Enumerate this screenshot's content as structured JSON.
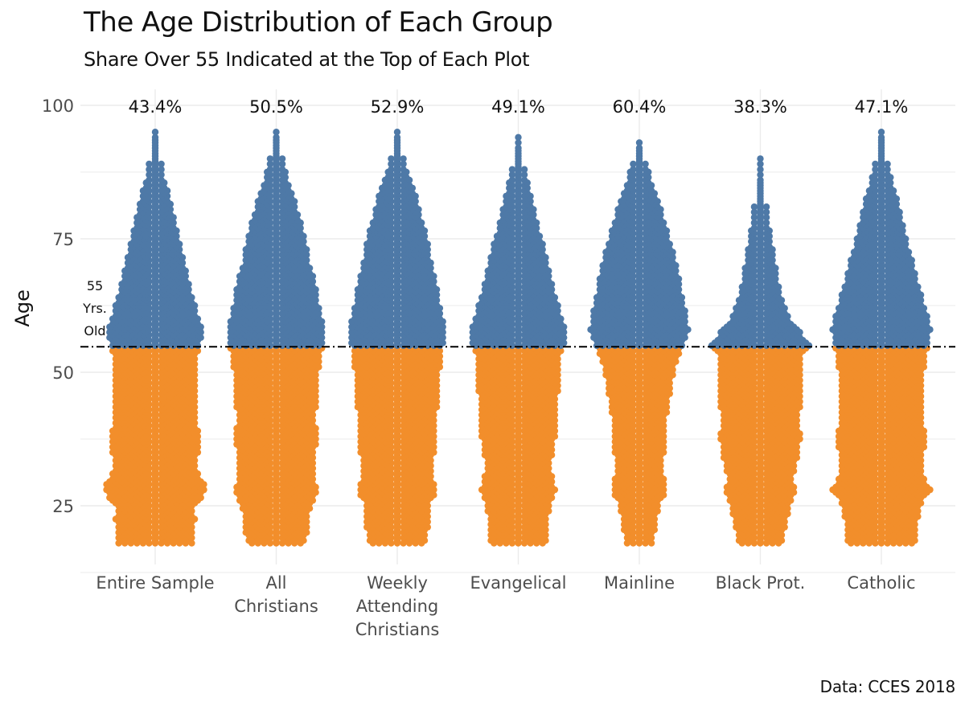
{
  "title": "The Age Distribution of Each Group",
  "subtitle": "Share Over 55 Indicated at the Top of Each Plot",
  "caption": "Data: CCES 2018",
  "chart_data": {
    "type": "scatter",
    "subtype": "beeswarm / violin dot plot",
    "ylabel": "Age",
    "xlabel": "",
    "ylim": [
      14,
      103
    ],
    "yticks": [
      25,
      50,
      75,
      100
    ],
    "grid": true,
    "threshold": {
      "value": 55,
      "label_lines": [
        "55",
        "Yrs.",
        "Old"
      ],
      "line_style": "dash-dot"
    },
    "colors": {
      "over_55": "#4e79a7",
      "under_55": "#f28e2b",
      "gridline": "#ebebeb",
      "threshold_line": "#000000"
    },
    "categories": [
      {
        "label_lines": [
          "Entire Sample"
        ],
        "share_over_55": "43.4%",
        "max_age": 95,
        "density_widths": [
          [
            18,
            0.7
          ],
          [
            22,
            0.75
          ],
          [
            25,
            0.72
          ],
          [
            28,
            1.0
          ],
          [
            30,
            0.85
          ],
          [
            33,
            0.75
          ],
          [
            35,
            0.82
          ],
          [
            38,
            0.84
          ],
          [
            40,
            0.78
          ],
          [
            43,
            0.76
          ],
          [
            45,
            0.8
          ],
          [
            48,
            0.79
          ],
          [
            50,
            0.77
          ],
          [
            53,
            0.8
          ],
          [
            55,
            0.85
          ],
          [
            58,
            0.88
          ],
          [
            60,
            0.82
          ],
          [
            63,
            0.74
          ],
          [
            66,
            0.65
          ],
          [
            70,
            0.56
          ],
          [
            74,
            0.46
          ],
          [
            78,
            0.38
          ],
          [
            82,
            0.28
          ],
          [
            86,
            0.18
          ],
          [
            90,
            0.1
          ],
          [
            95,
            0.04
          ]
        ]
      },
      {
        "label_lines": [
          "All",
          "Christians"
        ],
        "share_over_55": "50.5%",
        "max_age": 95,
        "density_widths": [
          [
            18,
            0.56
          ],
          [
            22,
            0.6
          ],
          [
            25,
            0.65
          ],
          [
            28,
            0.78
          ],
          [
            30,
            0.72
          ],
          [
            33,
            0.7
          ],
          [
            35,
            0.74
          ],
          [
            38,
            0.76
          ],
          [
            40,
            0.74
          ],
          [
            43,
            0.74
          ],
          [
            45,
            0.76
          ],
          [
            48,
            0.78
          ],
          [
            50,
            0.8
          ],
          [
            53,
            0.84
          ],
          [
            55,
            0.88
          ],
          [
            58,
            0.9
          ],
          [
            60,
            0.86
          ],
          [
            63,
            0.8
          ],
          [
            66,
            0.74
          ],
          [
            70,
            0.64
          ],
          [
            74,
            0.56
          ],
          [
            78,
            0.46
          ],
          [
            82,
            0.36
          ],
          [
            86,
            0.22
          ],
          [
            90,
            0.12
          ],
          [
            95,
            0.04
          ]
        ]
      },
      {
        "label_lines": [
          "Weekly",
          "Attending",
          "Christians"
        ],
        "share_over_55": "52.9%",
        "max_age": 95,
        "density_widths": [
          [
            18,
            0.56
          ],
          [
            22,
            0.58
          ],
          [
            25,
            0.6
          ],
          [
            28,
            0.74
          ],
          [
            30,
            0.68
          ],
          [
            33,
            0.66
          ],
          [
            35,
            0.7
          ],
          [
            38,
            0.74
          ],
          [
            40,
            0.72
          ],
          [
            43,
            0.74
          ],
          [
            45,
            0.76
          ],
          [
            48,
            0.78
          ],
          [
            50,
            0.8
          ],
          [
            53,
            0.82
          ],
          [
            55,
            0.86
          ],
          [
            58,
            0.9
          ],
          [
            60,
            0.86
          ],
          [
            63,
            0.8
          ],
          [
            66,
            0.74
          ],
          [
            70,
            0.66
          ],
          [
            74,
            0.58
          ],
          [
            78,
            0.48
          ],
          [
            82,
            0.38
          ],
          [
            86,
            0.24
          ],
          [
            90,
            0.12
          ],
          [
            95,
            0.04
          ]
        ]
      },
      {
        "label_lines": [
          "Evangelical"
        ],
        "share_over_55": "49.1%",
        "max_age": 94,
        "density_widths": [
          [
            18,
            0.52
          ],
          [
            22,
            0.56
          ],
          [
            25,
            0.58
          ],
          [
            28,
            0.72
          ],
          [
            30,
            0.64
          ],
          [
            33,
            0.62
          ],
          [
            35,
            0.66
          ],
          [
            38,
            0.7
          ],
          [
            40,
            0.7
          ],
          [
            43,
            0.72
          ],
          [
            45,
            0.74
          ],
          [
            48,
            0.76
          ],
          [
            50,
            0.78
          ],
          [
            53,
            0.8
          ],
          [
            55,
            0.86
          ],
          [
            58,
            0.88
          ],
          [
            60,
            0.82
          ],
          [
            63,
            0.74
          ],
          [
            66,
            0.66
          ],
          [
            70,
            0.56
          ],
          [
            74,
            0.46
          ],
          [
            78,
            0.36
          ],
          [
            82,
            0.26
          ],
          [
            86,
            0.16
          ],
          [
            90,
            0.08
          ],
          [
            94,
            0.03
          ]
        ]
      },
      {
        "label_lines": [
          "Mainline"
        ],
        "share_over_55": "60.4%",
        "max_age": 93,
        "density_widths": [
          [
            18,
            0.26
          ],
          [
            22,
            0.32
          ],
          [
            25,
            0.36
          ],
          [
            28,
            0.52
          ],
          [
            30,
            0.46
          ],
          [
            33,
            0.44
          ],
          [
            35,
            0.46
          ],
          [
            38,
            0.48
          ],
          [
            40,
            0.5
          ],
          [
            43,
            0.52
          ],
          [
            45,
            0.56
          ],
          [
            48,
            0.62
          ],
          [
            50,
            0.66
          ],
          [
            53,
            0.74
          ],
          [
            55,
            0.84
          ],
          [
            58,
            0.92
          ],
          [
            60,
            0.9
          ],
          [
            63,
            0.84
          ],
          [
            66,
            0.78
          ],
          [
            70,
            0.7
          ],
          [
            74,
            0.6
          ],
          [
            78,
            0.48
          ],
          [
            82,
            0.36
          ],
          [
            86,
            0.22
          ],
          [
            90,
            0.1
          ],
          [
            93,
            0.04
          ]
        ]
      },
      {
        "label_lines": [
          "Black Prot."
        ],
        "share_over_55": "38.3%",
        "max_age": 90,
        "density_widths": [
          [
            18,
            0.4
          ],
          [
            22,
            0.5
          ],
          [
            25,
            0.56
          ],
          [
            28,
            0.66
          ],
          [
            30,
            0.62
          ],
          [
            33,
            0.68
          ],
          [
            35,
            0.72
          ],
          [
            38,
            0.76
          ],
          [
            40,
            0.72
          ],
          [
            43,
            0.74
          ],
          [
            45,
            0.8
          ],
          [
            48,
            0.78
          ],
          [
            50,
            0.74
          ],
          [
            53,
            0.8
          ],
          [
            55,
            0.92
          ],
          [
            58,
            0.72
          ],
          [
            60,
            0.56
          ],
          [
            63,
            0.44
          ],
          [
            66,
            0.36
          ],
          [
            70,
            0.28
          ],
          [
            74,
            0.22
          ],
          [
            78,
            0.16
          ],
          [
            82,
            0.1
          ],
          [
            86,
            0.06
          ],
          [
            90,
            0.03
          ]
        ]
      },
      {
        "label_lines": [
          "Catholic"
        ],
        "share_over_55": "47.1%",
        "max_age": 95,
        "density_widths": [
          [
            18,
            0.64
          ],
          [
            22,
            0.68
          ],
          [
            25,
            0.72
          ],
          [
            28,
            0.92
          ],
          [
            30,
            0.82
          ],
          [
            33,
            0.74
          ],
          [
            35,
            0.8
          ],
          [
            38,
            0.82
          ],
          [
            40,
            0.8
          ],
          [
            43,
            0.78
          ],
          [
            45,
            0.8
          ],
          [
            48,
            0.8
          ],
          [
            50,
            0.8
          ],
          [
            53,
            0.84
          ],
          [
            55,
            0.9
          ],
          [
            58,
            0.92
          ],
          [
            60,
            0.88
          ],
          [
            63,
            0.8
          ],
          [
            66,
            0.7
          ],
          [
            70,
            0.6
          ],
          [
            74,
            0.5
          ],
          [
            78,
            0.4
          ],
          [
            82,
            0.3
          ],
          [
            86,
            0.2
          ],
          [
            90,
            0.1
          ],
          [
            95,
            0.04
          ]
        ]
      }
    ]
  }
}
